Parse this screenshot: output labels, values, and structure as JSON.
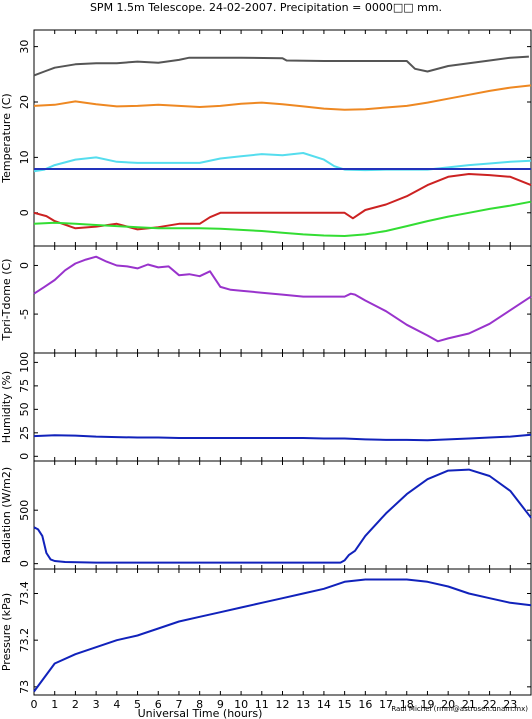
{
  "title": "SPM 1.5m Telescope. 24-02-2007. Precipitation = 0000□□ mm.",
  "credit": "Raul Michel (rmm@astrosen.unam.mx)",
  "chart_data": {
    "type": "line",
    "xlabel": "Universal Time (hours)",
    "xlim": [
      0,
      24
    ],
    "xticks": [
      "0",
      "1",
      "2",
      "3",
      "4",
      "5",
      "6",
      "7",
      "8",
      "9",
      "10",
      "11",
      "12",
      "13",
      "14",
      "15",
      "16",
      "17",
      "18",
      "19",
      "20",
      "21",
      "22",
      "23"
    ],
    "panels": [
      {
        "ylabel": "Temperature (C)",
        "ylim": [
          -6,
          33
        ],
        "yticks": [
          0,
          10,
          20,
          30
        ],
        "series": [
          {
            "color": "#555555",
            "x": [
              0,
              0.5,
              1,
              2,
              3,
              4,
              5,
              6,
              7,
              7.5,
              8,
              10,
              12,
              12.2,
              14,
              16,
              18,
              18.4,
              19,
              20,
              21,
              22,
              23,
              23.9
            ],
            "y": [
              24.8,
              25.5,
              26.2,
              26.8,
              27.0,
              27.0,
              27.3,
              27.1,
              27.6,
              28.0,
              28.0,
              28.0,
              27.9,
              27.5,
              27.4,
              27.4,
              27.4,
              26.0,
              25.5,
              26.5,
              27.0,
              27.5,
              28.0,
              28.2
            ]
          },
          {
            "color": "#ee8822",
            "x": [
              0,
              1,
              2,
              3,
              4,
              5,
              6,
              7,
              8,
              9,
              10,
              11,
              12,
              13,
              14,
              15,
              16,
              17,
              18,
              19,
              20,
              21,
              22,
              23,
              24
            ],
            "y": [
              19.3,
              19.5,
              20.1,
              19.6,
              19.2,
              19.3,
              19.5,
              19.3,
              19.1,
              19.3,
              19.7,
              19.9,
              19.6,
              19.2,
              18.8,
              18.6,
              18.7,
              19.0,
              19.3,
              19.9,
              20.6,
              21.3,
              22.0,
              22.6,
              23.0
            ]
          },
          {
            "color": "#55ddee",
            "x": [
              0,
              0.5,
              1,
              2,
              3,
              4,
              5,
              7,
              8,
              9,
              10,
              11,
              12,
              13,
              14,
              14.5,
              15,
              16,
              17,
              18,
              19,
              20,
              21,
              22,
              23,
              24
            ],
            "y": [
              7.5,
              7.8,
              8.6,
              9.6,
              10.0,
              9.2,
              9.0,
              9.0,
              9.0,
              9.8,
              10.2,
              10.6,
              10.4,
              10.8,
              9.6,
              8.4,
              7.8,
              7.7,
              7.8,
              7.8,
              7.8,
              8.2,
              8.6,
              8.9,
              9.2,
              9.4
            ]
          },
          {
            "color": "#2233bb",
            "x": [
              0,
              24
            ],
            "y": [
              7.9,
              7.9
            ]
          },
          {
            "color": "#cc2222",
            "x": [
              0,
              0.6,
              1,
              2,
              3,
              4,
              5,
              6,
              7,
              8,
              8.5,
              9,
              10,
              11,
              12,
              13,
              14,
              15,
              15.4,
              16,
              17,
              18,
              19,
              20,
              21,
              22,
              23,
              24
            ],
            "y": [
              0.0,
              -0.6,
              -1.5,
              -2.8,
              -2.5,
              -2.0,
              -3.0,
              -2.6,
              -2.0,
              -2.0,
              -0.8,
              0.0,
              0.0,
              0.0,
              0.0,
              0.0,
              0.0,
              0.0,
              -1.0,
              0.5,
              1.5,
              3.0,
              5.0,
              6.5,
              7.0,
              6.8,
              6.5,
              5.0
            ]
          },
          {
            "color": "#33dd33",
            "x": [
              0,
              1,
              2,
              3,
              4,
              5,
              6,
              7,
              8,
              9,
              10,
              11,
              12,
              13,
              14,
              15,
              16,
              17,
              18,
              19,
              20,
              21,
              22,
              23,
              24
            ],
            "y": [
              -2.0,
              -1.8,
              -2.0,
              -2.2,
              -2.4,
              -2.6,
              -2.8,
              -2.8,
              -2.8,
              -2.9,
              -3.1,
              -3.3,
              -3.6,
              -3.9,
              -4.1,
              -4.2,
              -3.9,
              -3.3,
              -2.4,
              -1.5,
              -0.7,
              0.0,
              0.7,
              1.3,
              2.0
            ]
          }
        ]
      },
      {
        "ylabel": "Tpri-Tdome (C)",
        "ylim": [
          -9,
          2
        ],
        "yticks": [
          0,
          -5
        ],
        "series": [
          {
            "color": "#9933cc",
            "x": [
              0,
              0.5,
              1,
              1.5,
              2,
              2.5,
              3,
              3.5,
              4,
              4.5,
              5,
              5.5,
              6,
              6.5,
              7,
              7.5,
              8,
              8.5,
              9,
              9.5,
              10,
              11,
              12,
              13,
              14,
              15,
              15.3,
              15.5,
              16,
              17,
              18,
              19,
              19.5,
              20,
              21,
              22,
              23,
              24
            ],
            "y": [
              -2.9,
              -2.2,
              -1.5,
              -0.5,
              0.2,
              0.6,
              0.9,
              0.4,
              0.0,
              -0.1,
              -0.3,
              0.1,
              -0.2,
              -0.1,
              -1.0,
              -0.9,
              -1.1,
              -0.6,
              -2.2,
              -2.5,
              -2.6,
              -2.8,
              -3.0,
              -3.2,
              -3.2,
              -3.2,
              -2.9,
              -3.0,
              -3.6,
              -4.7,
              -6.1,
              -7.2,
              -7.8,
              -7.5,
              -7.0,
              -6.0,
              -4.6,
              -3.2
            ]
          }
        ]
      },
      {
        "ylabel": "Humidity (%)",
        "ylim": [
          -5,
          110
        ],
        "yticks": [
          0,
          25,
          50,
          75,
          100
        ],
        "series": [
          {
            "color": "#1122bb",
            "x": [
              0,
              1,
              2,
              3,
              4,
              5,
              6,
              7,
              8,
              9,
              10,
              11,
              12,
              13,
              14,
              15,
              16,
              17,
              18,
              19,
              20,
              21,
              22,
              23,
              24
            ],
            "y": [
              21.5,
              22.5,
              22,
              21,
              20.5,
              20,
              20,
              19.5,
              19.5,
              19.5,
              19.5,
              19.5,
              19.5,
              19.5,
              19,
              19,
              18,
              17.5,
              17.5,
              17,
              18,
              19,
              20,
              21,
              23
            ]
          }
        ]
      },
      {
        "ylabel": "Radiation (W/m2)",
        "ylim": [
          -50,
          960
        ],
        "yticks": [
          0,
          500
        ],
        "series": [
          {
            "color": "#1122bb",
            "x": [
              0,
              0.2,
              0.4,
              0.6,
              0.8,
              1,
              1.5,
              3,
              6,
              9,
              12,
              14,
              14.8,
              15,
              15.2,
              15.5,
              16,
              17,
              18,
              19,
              20,
              21,
              22,
              23,
              24
            ],
            "y": [
              340,
              320,
              260,
              100,
              40,
              25,
              15,
              10,
              10,
              10,
              10,
              10,
              10,
              30,
              80,
              120,
              260,
              470,
              650,
              790,
              870,
              880,
              820,
              680,
              430
            ]
          }
        ]
      },
      {
        "ylabel": "Pressure (kPa)",
        "ylim": [
          72.965,
          73.505
        ],
        "yticks": [
          73,
          73.2,
          73.4
        ],
        "series": [
          {
            "color": "#1122bb",
            "x": [
              0,
              1,
              2,
              3,
              4,
              5,
              6,
              7,
              8,
              9,
              10,
              11,
              12,
              13,
              14,
              15,
              16,
              17,
              18,
              19,
              20,
              21,
              22,
              23,
              24
            ],
            "y": [
              72.98,
              73.1,
              73.14,
              73.17,
              73.2,
              73.22,
              73.25,
              73.28,
              73.3,
              73.32,
              73.34,
              73.36,
              73.38,
              73.4,
              73.42,
              73.45,
              73.46,
              73.46,
              73.46,
              73.45,
              73.43,
              73.4,
              73.38,
              73.36,
              73.35
            ]
          }
        ]
      }
    ]
  }
}
